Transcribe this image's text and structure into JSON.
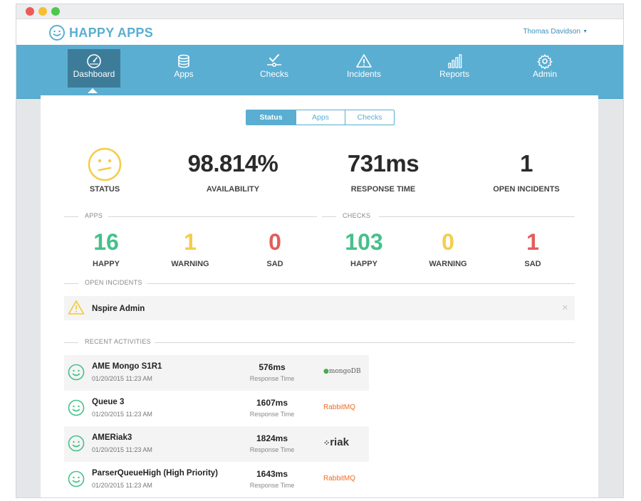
{
  "app": {
    "brand": "HAPPY APPS",
    "user": "Thomas Davidson"
  },
  "nav": [
    {
      "label": "Dashboard",
      "icon": "gauge-icon",
      "active": true
    },
    {
      "label": "Apps",
      "icon": "database-icon"
    },
    {
      "label": "Checks",
      "icon": "checks-icon"
    },
    {
      "label": "Incidents",
      "icon": "warning-icon"
    },
    {
      "label": "Reports",
      "icon": "bar-chart-icon"
    },
    {
      "label": "Admin",
      "icon": "gear-icon"
    }
  ],
  "tabs": [
    {
      "label": "Status",
      "active": true
    },
    {
      "label": "Apps"
    },
    {
      "label": "Checks"
    }
  ],
  "summary": {
    "status_label": "STATUS",
    "availability": "98.814%",
    "availability_label": "AVAILABILITY",
    "response_time": "731ms",
    "response_time_label": "RESPONSE TIME",
    "open_incidents": "1",
    "open_incidents_label": "OPEN INCIDENTS"
  },
  "apps": {
    "title": "APPS",
    "happy": "16",
    "warning": "1",
    "sad": "0"
  },
  "checks": {
    "title": "CHECKS",
    "happy": "103",
    "warning": "0",
    "sad": "1"
  },
  "labels": {
    "happy": "HAPPY",
    "warning": "WARNING",
    "sad": "SAD"
  },
  "incidents": {
    "title": "OPEN INCIDENTS",
    "items": [
      {
        "name": "Nspire Admin"
      }
    ]
  },
  "activities": {
    "title": "RECENT ACTIVITIES",
    "rt_label": "Response Time",
    "items": [
      {
        "name": "AME Mongo S1R1",
        "date": "01/20/2015 11:23 AM",
        "rt": "576ms",
        "brand": "mongoDB"
      },
      {
        "name": "Queue 3",
        "date": "01/20/2015 11:23 AM",
        "rt": "1607ms",
        "brand": "RabbitMQ"
      },
      {
        "name": "AMERiak3",
        "date": "01/20/2015 11:23 AM",
        "rt": "1824ms",
        "brand": "riak"
      },
      {
        "name": "ParserQueueHigh (High Priority)",
        "date": "01/20/2015 11:23 AM",
        "rt": "1643ms",
        "brand": "RabbitMQ"
      }
    ]
  },
  "colors": {
    "accent": "#5aaed2",
    "nav_active": "#3d7c99",
    "happy": "#44c18a",
    "warning": "#f4cd4c",
    "sad": "#e35d5d"
  }
}
